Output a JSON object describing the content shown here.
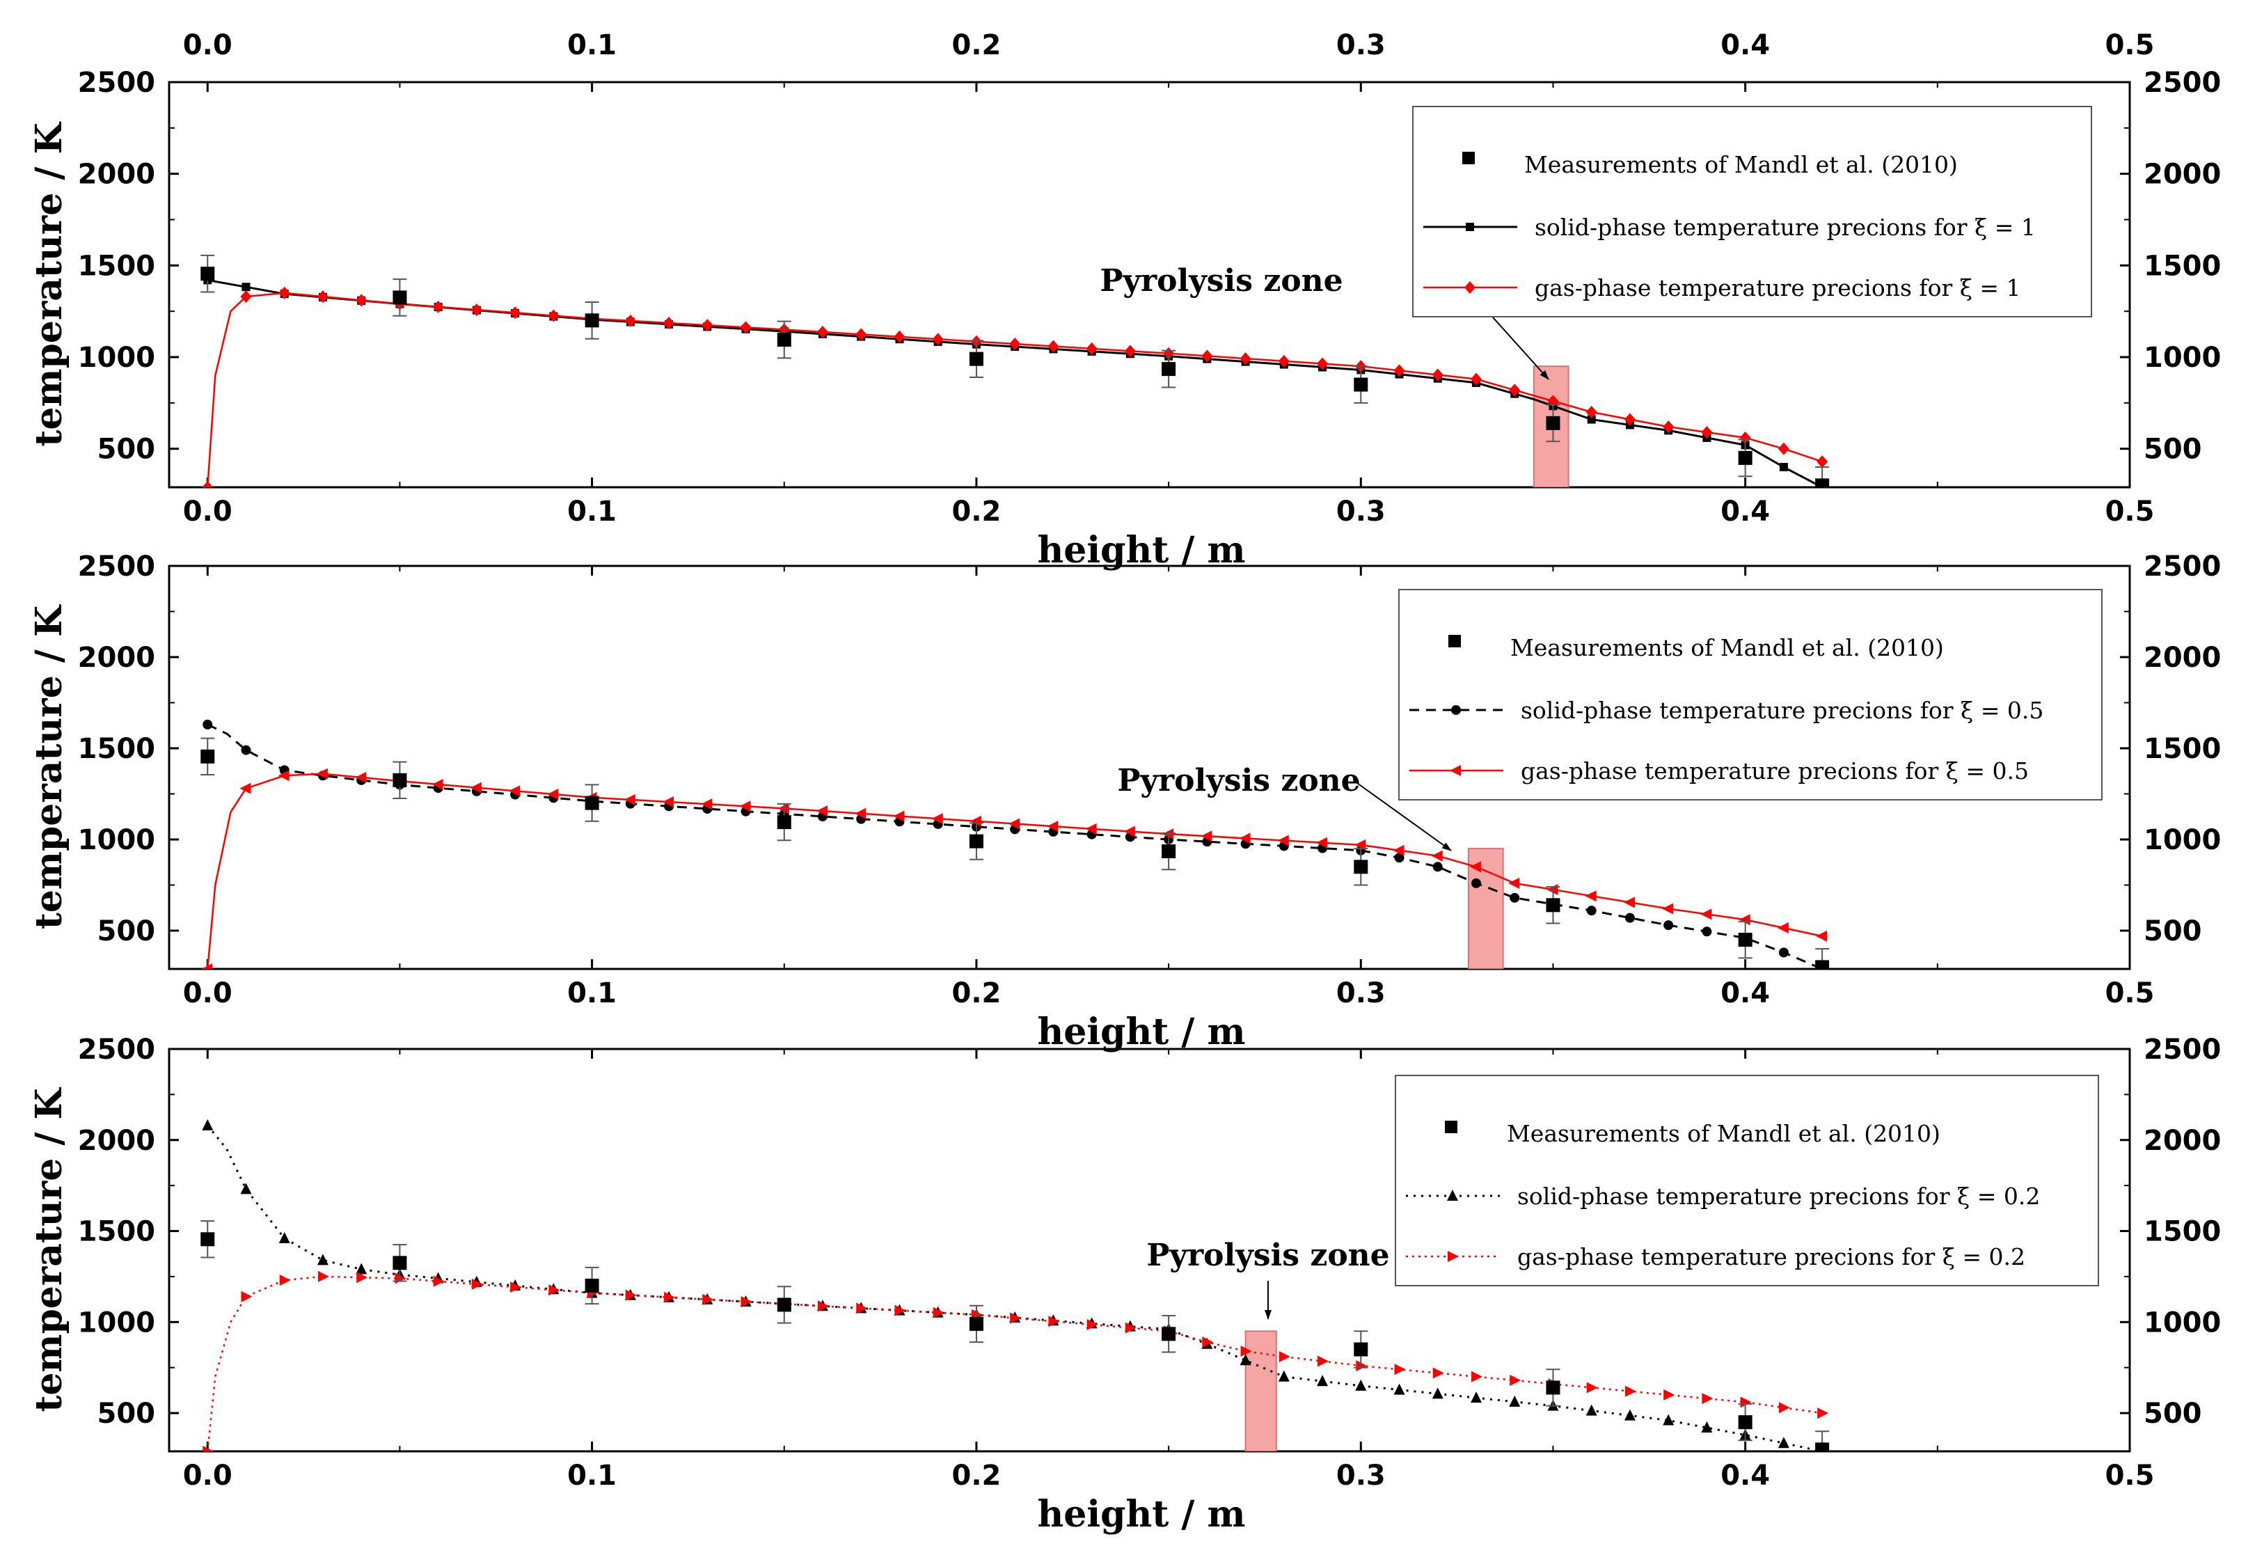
{
  "chart_data": [
    {
      "type": "line",
      "xlabel": "height  /  m",
      "ylabel": "temperature  /  K",
      "xlim": [
        -0.01,
        0.5
      ],
      "ylim": [
        290,
        2500
      ],
      "xticks": [
        "0.0",
        "0.1",
        "0.2",
        "0.3",
        "0.4",
        "0.5"
      ],
      "yticks": [
        "500",
        "1000",
        "1500",
        "2000",
        "2500"
      ],
      "measurements": {
        "name": "Measurements of Mandl et al. (2010)",
        "x": [
          0.0,
          0.05,
          0.1,
          0.15,
          0.2,
          0.25,
          0.3,
          0.35,
          0.4,
          0.42
        ],
        "y": [
          1455,
          1325,
          1200,
          1095,
          990,
          935,
          850,
          640,
          450,
          300
        ],
        "error": [
          100,
          100,
          100,
          100,
          100,
          100,
          100,
          100,
          100,
          100
        ]
      },
      "series": [
        {
          "name": "solid-phase  temperature precions for  ξ = 1",
          "x": [
            0.0,
            0.02,
            0.05,
            0.1,
            0.15,
            0.2,
            0.25,
            0.3,
            0.33,
            0.345,
            0.36,
            0.38,
            0.4,
            0.41,
            0.42
          ],
          "y": [
            1420,
            1345,
            1290,
            1205,
            1140,
            1070,
            1005,
            930,
            860,
            770,
            660,
            600,
            520,
            400,
            290
          ]
        },
        {
          "name": "gas-phase temperature precions for   ξ = 1",
          "x": [
            0.0,
            0.002,
            0.006,
            0.01,
            0.02,
            0.05,
            0.1,
            0.15,
            0.2,
            0.25,
            0.3,
            0.33,
            0.345,
            0.36,
            0.38,
            0.4,
            0.41,
            0.42
          ],
          "y": [
            290,
            900,
            1250,
            1330,
            1350,
            1290,
            1210,
            1150,
            1085,
            1020,
            950,
            880,
            790,
            700,
            620,
            560,
            500,
            430
          ]
        }
      ],
      "annotation": {
        "text": "Pyrolysis zone",
        "zone": [
          0.345,
          0.354
        ]
      }
    },
    {
      "type": "line",
      "xlabel": "height  /  m",
      "ylabel": "temperature  /  K",
      "xlim": [
        -0.01,
        0.5
      ],
      "ylim": [
        290,
        2500
      ],
      "xticks": [
        "0.0",
        "0.1",
        "0.2",
        "0.3",
        "0.4",
        "0.5"
      ],
      "yticks": [
        "500",
        "1000",
        "1500",
        "2000",
        "2500"
      ],
      "measurements": {
        "name": "Measurements of Mandl et al. (2010)",
        "x": [
          0.0,
          0.05,
          0.1,
          0.15,
          0.2,
          0.25,
          0.3,
          0.35,
          0.4,
          0.42
        ],
        "y": [
          1455,
          1325,
          1200,
          1095,
          990,
          935,
          850,
          640,
          450,
          300
        ],
        "error": [
          100,
          100,
          100,
          100,
          100,
          100,
          100,
          100,
          100,
          100
        ]
      },
      "series": [
        {
          "name": "solid-phase  temperature precions for   ξ = 0.5",
          "x": [
            0.0,
            0.005,
            0.01,
            0.02,
            0.03,
            0.05,
            0.1,
            0.15,
            0.2,
            0.25,
            0.3,
            0.31,
            0.32,
            0.33,
            0.34,
            0.36,
            0.38,
            0.4,
            0.41,
            0.42
          ],
          "y": [
            1630,
            1580,
            1490,
            1380,
            1350,
            1300,
            1210,
            1140,
            1070,
            1000,
            940,
            900,
            850,
            760,
            680,
            610,
            530,
            460,
            380,
            290
          ]
        },
        {
          "name": "gas-phase temperature precions for    ξ = 0.5",
          "x": [
            0.0,
            0.002,
            0.006,
            0.01,
            0.02,
            0.03,
            0.05,
            0.1,
            0.15,
            0.2,
            0.25,
            0.3,
            0.32,
            0.33,
            0.34,
            0.36,
            0.38,
            0.4,
            0.42
          ],
          "y": [
            290,
            750,
            1150,
            1280,
            1350,
            1360,
            1320,
            1230,
            1170,
            1100,
            1030,
            970,
            910,
            850,
            760,
            690,
            620,
            560,
            470
          ]
        }
      ],
      "annotation": {
        "text": "Pyrolysis zone",
        "zone": [
          0.328,
          0.337
        ]
      }
    },
    {
      "type": "line",
      "xlabel": "height  /  m",
      "ylabel": "temperature  /  K",
      "xlim": [
        -0.01,
        0.5
      ],
      "ylim": [
        290,
        2500
      ],
      "xticks": [
        "0.0",
        "0.1",
        "0.2",
        "0.3",
        "0.4",
        "0.5"
      ],
      "yticks": [
        "500",
        "1000",
        "1500",
        "2000",
        "2500"
      ],
      "measurements": {
        "name": "Measurements of Mandl et al. (2010)",
        "x": [
          0.0,
          0.05,
          0.1,
          0.15,
          0.2,
          0.25,
          0.3,
          0.35,
          0.4,
          0.42
        ],
        "y": [
          1455,
          1325,
          1200,
          1095,
          990,
          935,
          850,
          640,
          450,
          300
        ],
        "error": [
          100,
          100,
          100,
          100,
          100,
          100,
          100,
          100,
          100,
          100
        ]
      },
      "series": [
        {
          "name": "solid-phase  temperature precions for   ξ = 0.2",
          "x": [
            0.0,
            0.005,
            0.01,
            0.02,
            0.03,
            0.04,
            0.05,
            0.07,
            0.1,
            0.15,
            0.2,
            0.25,
            0.26,
            0.27,
            0.28,
            0.3,
            0.35,
            0.38,
            0.4,
            0.42
          ],
          "y": [
            2080,
            1950,
            1730,
            1460,
            1340,
            1290,
            1260,
            1220,
            1160,
            1100,
            1040,
            960,
            880,
            790,
            700,
            650,
            540,
            460,
            380,
            290
          ]
        },
        {
          "name": "gas-phase temperature precions for    ξ = 0.2",
          "x": [
            0.0,
            0.002,
            0.006,
            0.01,
            0.02,
            0.03,
            0.05,
            0.1,
            0.15,
            0.2,
            0.25,
            0.26,
            0.27,
            0.28,
            0.3,
            0.35,
            0.4,
            0.42
          ],
          "y": [
            290,
            700,
            1000,
            1140,
            1230,
            1250,
            1240,
            1160,
            1100,
            1040,
            950,
            890,
            840,
            810,
            760,
            660,
            560,
            500
          ]
        }
      ],
      "annotation": {
        "text": "Pyrolysis zone",
        "zone": [
          0.27,
          0.278
        ]
      }
    }
  ],
  "top_axis": {
    "ticks": [
      "0.0",
      "0.1",
      "0.2",
      "0.3",
      "0.4",
      "0.5"
    ]
  },
  "colors": {
    "gas": "#ff0000",
    "solid": "#000000",
    "zone_fill": "#f6a5a5",
    "zone_stroke": "#e07070"
  }
}
